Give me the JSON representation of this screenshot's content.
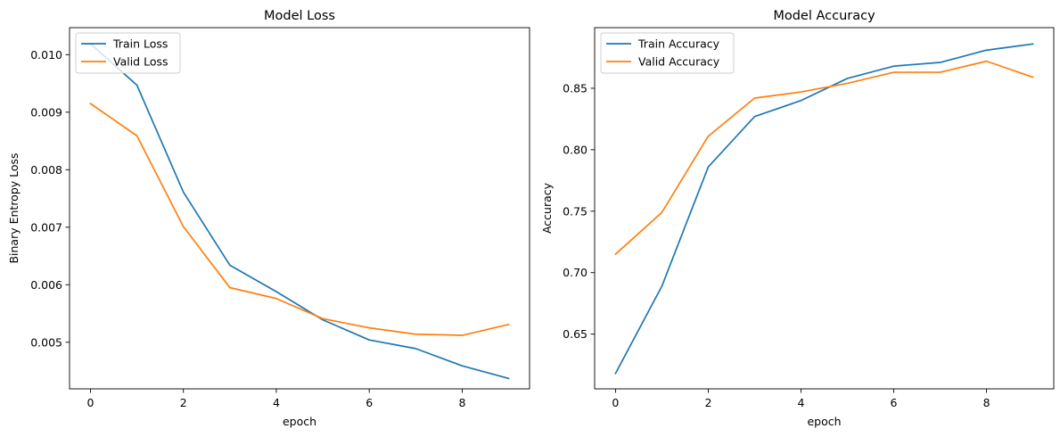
{
  "chart_data": [
    {
      "type": "line",
      "title": "Model Loss",
      "xlabel": "epoch",
      "ylabel": "Binary Entropy Loss",
      "x": [
        0,
        1,
        2,
        3,
        4,
        5,
        6,
        7,
        8,
        9
      ],
      "xlim": [
        -0.45,
        9.45
      ],
      "ylim": [
        0.00419,
        0.01047
      ],
      "xticks": [
        0,
        2,
        4,
        6,
        8
      ],
      "xtick_labels": [
        "0",
        "2",
        "4",
        "6",
        "8"
      ],
      "yticks": [
        0.005,
        0.006,
        0.007,
        0.008,
        0.009,
        0.01
      ],
      "ytick_labels": [
        "0.005",
        "0.006",
        "0.007",
        "0.008",
        "0.009",
        "0.010"
      ],
      "grid": false,
      "legend": "upper left",
      "series": [
        {
          "name": "Train Loss",
          "color": "#1f77b4",
          "values": [
            0.01019,
            0.00947,
            0.00761,
            0.00634,
            0.00588,
            0.00539,
            0.00504,
            0.00489,
            0.00459,
            0.00437
          ]
        },
        {
          "name": "Valid Loss",
          "color": "#ff7f0e",
          "values": [
            0.00915,
            0.00859,
            0.00701,
            0.00595,
            0.00576,
            0.00541,
            0.00525,
            0.00514,
            0.00512,
            0.00531
          ]
        }
      ]
    },
    {
      "type": "line",
      "title": "Model Accuracy",
      "xlabel": "epoch",
      "ylabel": "Accuracy",
      "x": [
        0,
        1,
        2,
        3,
        4,
        5,
        6,
        7,
        8,
        9
      ],
      "xlim": [
        -0.45,
        9.45
      ],
      "ylim": [
        0.6055,
        0.8993
      ],
      "xticks": [
        0,
        2,
        4,
        6,
        8
      ],
      "xtick_labels": [
        "0",
        "2",
        "4",
        "6",
        "8"
      ],
      "yticks": [
        0.65,
        0.7,
        0.75,
        0.8,
        0.85
      ],
      "ytick_labels": [
        "0.65",
        "0.70",
        "0.75",
        "0.80",
        "0.85"
      ],
      "grid": false,
      "legend": "upper left",
      "series": [
        {
          "name": "Train Accuracy",
          "color": "#1f77b4",
          "values": [
            0.618,
            0.689,
            0.786,
            0.827,
            0.84,
            0.858,
            0.868,
            0.871,
            0.881,
            0.886
          ]
        },
        {
          "name": "Valid Accuracy",
          "color": "#ff7f0e",
          "values": [
            0.715,
            0.749,
            0.811,
            0.842,
            0.847,
            0.854,
            0.863,
            0.863,
            0.872,
            0.859
          ]
        }
      ]
    }
  ]
}
